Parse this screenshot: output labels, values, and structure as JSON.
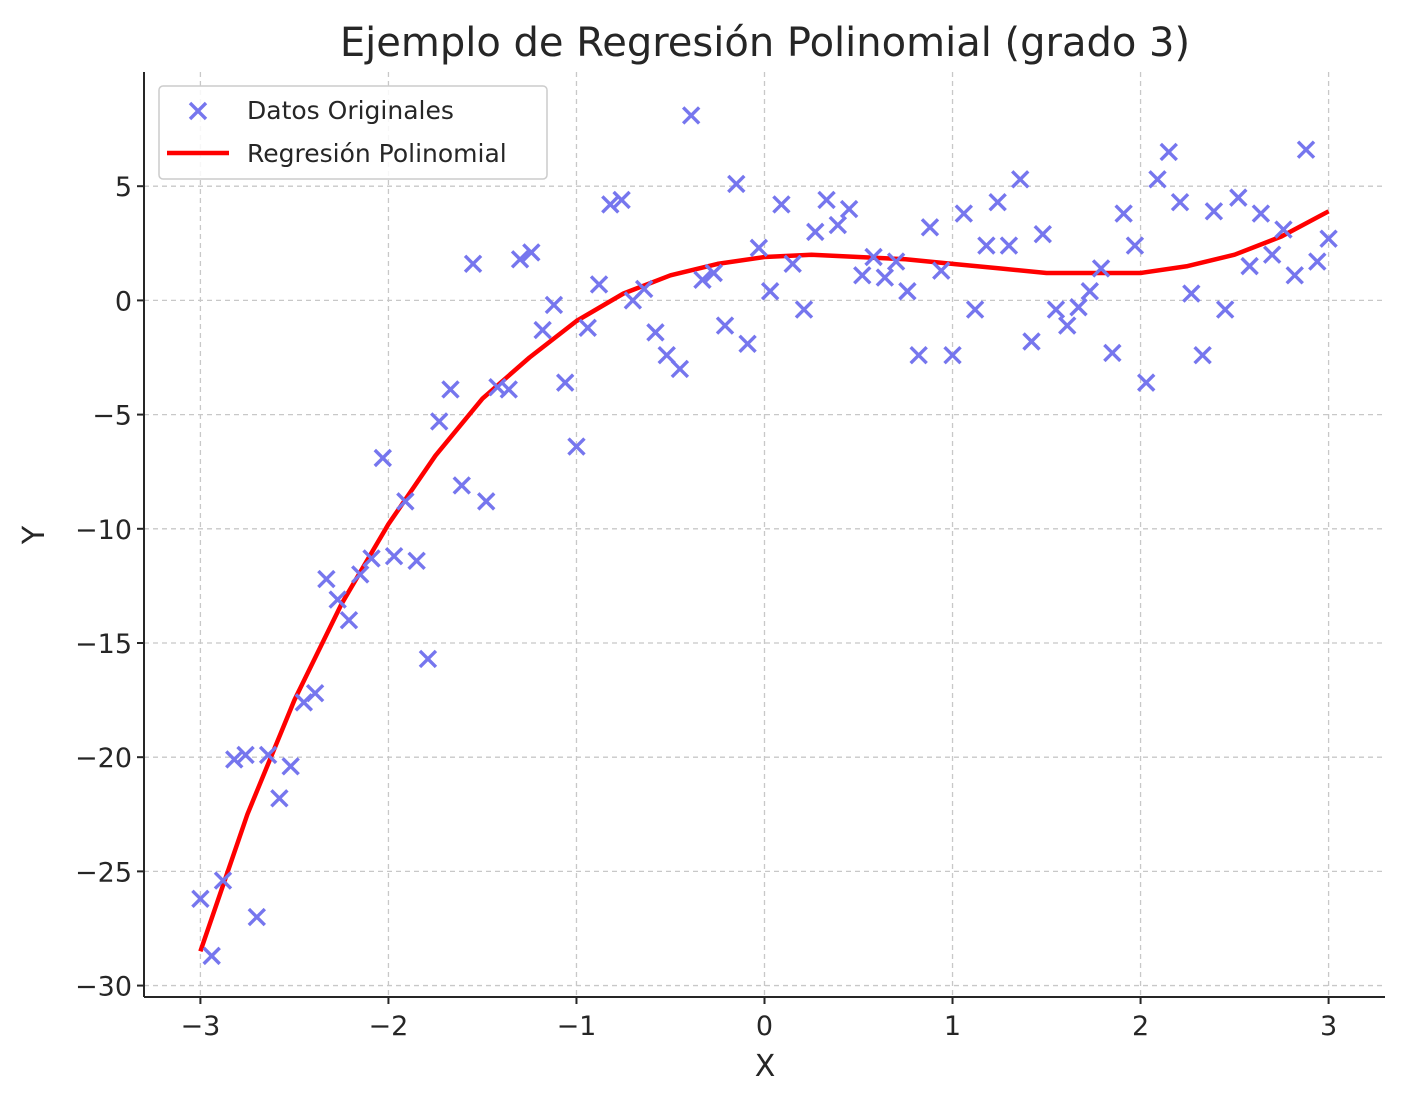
{
  "chart_data": {
    "type": "scatter",
    "title": "Ejemplo de Regresión Polinomial (grado 3)",
    "xlabel": "X",
    "ylabel": "Y",
    "xlim": [
      -3.3,
      3.3
    ],
    "ylim": [
      -30.5,
      10.0
    ],
    "x_ticks": [
      -3,
      -2,
      -1,
      0,
      1,
      2,
      3
    ],
    "x_tick_labels": [
      "−3",
      "−2",
      "−1",
      "0",
      "1",
      "2",
      "3"
    ],
    "y_ticks": [
      5,
      0,
      -5,
      -10,
      -15,
      -20,
      -25,
      -30
    ],
    "y_tick_labels": [
      "5",
      "0",
      "−5",
      "−10",
      "−15",
      "−20",
      "−25",
      "−30"
    ],
    "grid": true,
    "legend": {
      "position": "top-left",
      "entries": [
        "Datos Originales",
        "Regresión Polinomial"
      ]
    },
    "colors": {
      "scatter": "#7676ee",
      "line": "#ff0000"
    },
    "series": [
      {
        "name": "Datos Originales",
        "type": "scatter",
        "marker": "x",
        "points": [
          [
            -3.0,
            -26.2
          ],
          [
            -2.94,
            -28.7
          ],
          [
            -2.88,
            -25.4
          ],
          [
            -2.82,
            -20.1
          ],
          [
            -2.76,
            -19.9
          ],
          [
            -2.7,
            -27.0
          ],
          [
            -2.64,
            -19.9
          ],
          [
            -2.58,
            -21.8
          ],
          [
            -2.52,
            -20.4
          ],
          [
            -2.45,
            -17.6
          ],
          [
            -2.39,
            -17.2
          ],
          [
            -2.33,
            -12.2
          ],
          [
            -2.27,
            -13.1
          ],
          [
            -2.21,
            -14.0
          ],
          [
            -2.15,
            -12.0
          ],
          [
            -2.09,
            -11.3
          ],
          [
            -2.03,
            -6.9
          ],
          [
            -1.97,
            -11.2
          ],
          [
            -1.91,
            -8.8
          ],
          [
            -1.85,
            -11.4
          ],
          [
            -1.79,
            -15.7
          ],
          [
            -1.73,
            -5.3
          ],
          [
            -1.67,
            -3.9
          ],
          [
            -1.61,
            -8.1
          ],
          [
            -1.55,
            1.6
          ],
          [
            -1.48,
            -8.8
          ],
          [
            -1.42,
            -3.8
          ],
          [
            -1.36,
            -3.9
          ],
          [
            -1.3,
            1.8
          ],
          [
            -1.24,
            2.1
          ],
          [
            -1.18,
            -1.3
          ],
          [
            -1.12,
            -0.2
          ],
          [
            -1.06,
            -3.6
          ],
          [
            -1.0,
            -6.4
          ],
          [
            -0.94,
            -1.2
          ],
          [
            -0.88,
            0.7
          ],
          [
            -0.82,
            4.2
          ],
          [
            -0.76,
            4.4
          ],
          [
            -0.7,
            0.0
          ],
          [
            -0.64,
            0.5
          ],
          [
            -0.58,
            -1.4
          ],
          [
            -0.52,
            -2.4
          ],
          [
            -0.45,
            -3.0
          ],
          [
            -0.39,
            8.1
          ],
          [
            -0.33,
            0.9
          ],
          [
            -0.27,
            1.2
          ],
          [
            -0.21,
            -1.1
          ],
          [
            -0.15,
            5.1
          ],
          [
            -0.09,
            -1.9
          ],
          [
            -0.03,
            2.3
          ],
          [
            0.03,
            0.4
          ],
          [
            0.09,
            4.2
          ],
          [
            0.15,
            1.6
          ],
          [
            0.21,
            -0.4
          ],
          [
            0.27,
            3.0
          ],
          [
            0.33,
            4.4
          ],
          [
            0.39,
            3.3
          ],
          [
            0.45,
            4.0
          ],
          [
            0.52,
            1.1
          ],
          [
            0.58,
            1.9
          ],
          [
            0.64,
            1.0
          ],
          [
            0.7,
            1.7
          ],
          [
            0.76,
            0.4
          ],
          [
            0.82,
            -2.4
          ],
          [
            0.88,
            3.2
          ],
          [
            0.94,
            1.3
          ],
          [
            1.0,
            -2.4
          ],
          [
            1.06,
            3.8
          ],
          [
            1.12,
            -0.4
          ],
          [
            1.18,
            2.4
          ],
          [
            1.24,
            4.3
          ],
          [
            1.3,
            2.4
          ],
          [
            1.36,
            5.3
          ],
          [
            1.42,
            -1.8
          ],
          [
            1.48,
            2.9
          ],
          [
            1.55,
            -0.4
          ],
          [
            1.61,
            -1.1
          ],
          [
            1.67,
            -0.3
          ],
          [
            1.73,
            0.4
          ],
          [
            1.79,
            1.4
          ],
          [
            1.85,
            -2.3
          ],
          [
            1.91,
            3.8
          ],
          [
            1.97,
            2.4
          ],
          [
            2.03,
            -3.6
          ],
          [
            2.09,
            5.3
          ],
          [
            2.15,
            6.5
          ],
          [
            2.21,
            4.3
          ],
          [
            2.27,
            0.3
          ],
          [
            2.33,
            -2.4
          ],
          [
            2.39,
            3.9
          ],
          [
            2.45,
            -0.4
          ],
          [
            2.52,
            4.5
          ],
          [
            2.58,
            1.5
          ],
          [
            2.64,
            3.8
          ],
          [
            2.7,
            2.0
          ],
          [
            2.76,
            3.1
          ],
          [
            2.82,
            1.1
          ],
          [
            2.88,
            6.6
          ],
          [
            2.94,
            1.7
          ],
          [
            3.0,
            2.7
          ]
        ]
      },
      {
        "name": "Regresión Polinomial",
        "type": "line",
        "points": [
          [
            -3.0,
            -28.5
          ],
          [
            -2.75,
            -22.5
          ],
          [
            -2.5,
            -17.5
          ],
          [
            -2.25,
            -13.3
          ],
          [
            -2.0,
            -9.8
          ],
          [
            -1.75,
            -6.8
          ],
          [
            -1.5,
            -4.3
          ],
          [
            -1.25,
            -2.5
          ],
          [
            -1.0,
            -0.9
          ],
          [
            -0.75,
            0.3
          ],
          [
            -0.5,
            1.1
          ],
          [
            -0.25,
            1.6
          ],
          [
            0.0,
            1.9
          ],
          [
            0.25,
            2.0
          ],
          [
            0.5,
            1.9
          ],
          [
            0.75,
            1.8
          ],
          [
            1.0,
            1.6
          ],
          [
            1.25,
            1.4
          ],
          [
            1.5,
            1.2
          ],
          [
            1.75,
            1.2
          ],
          [
            2.0,
            1.2
          ],
          [
            2.25,
            1.5
          ],
          [
            2.5,
            2.0
          ],
          [
            2.75,
            2.8
          ],
          [
            3.0,
            3.9
          ]
        ]
      }
    ]
  }
}
